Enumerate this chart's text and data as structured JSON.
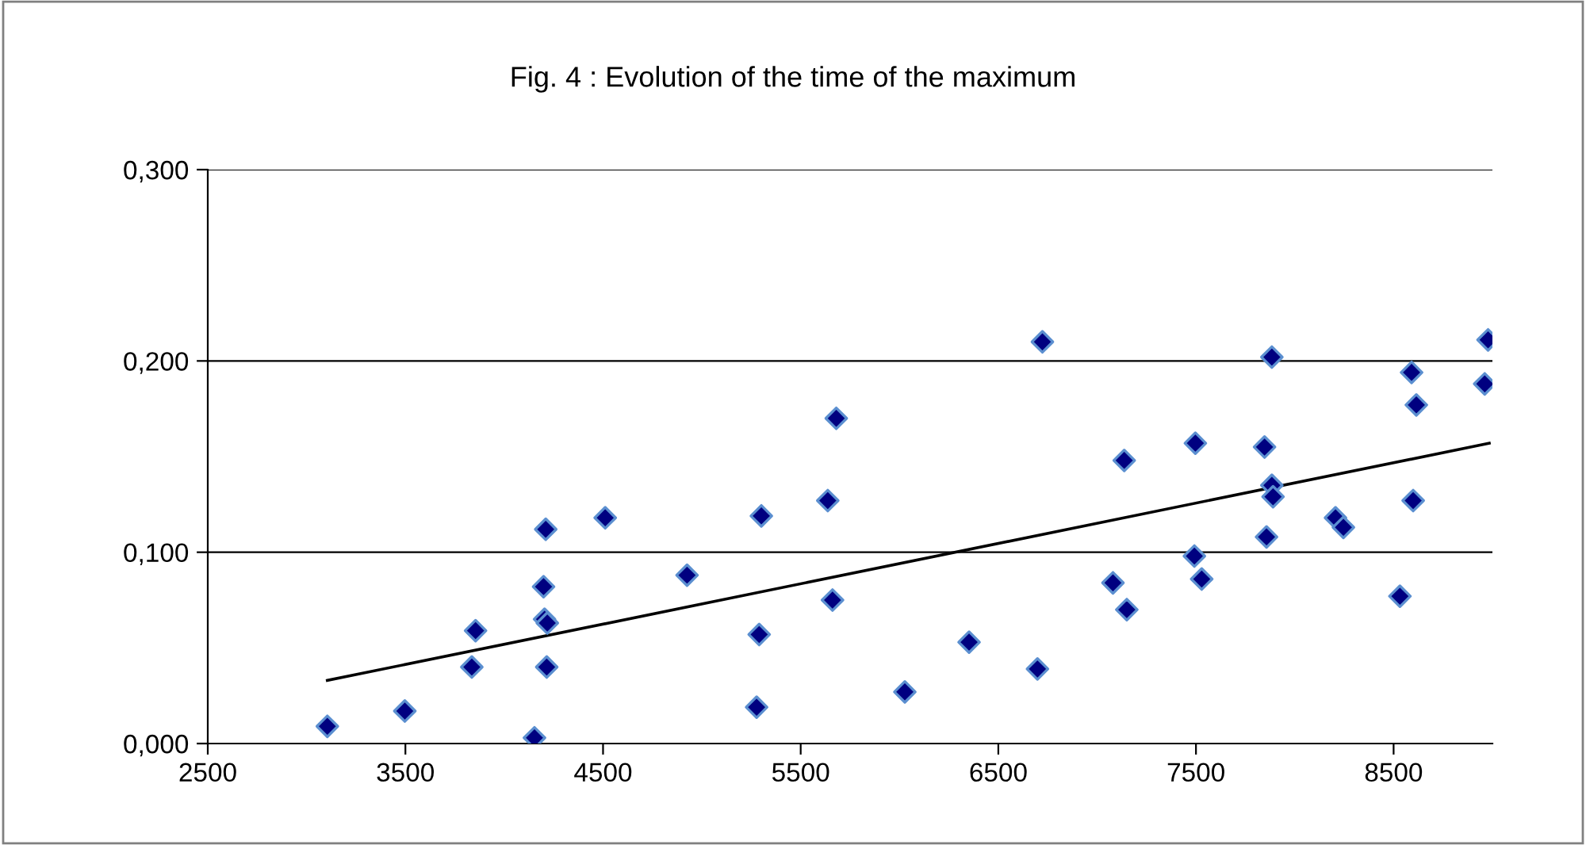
{
  "chart_data": {
    "type": "scatter",
    "title": "Fig. 4 : Evolution of the time of the maximum",
    "xlim": [
      2500,
      9000
    ],
    "xticks": [
      2500,
      3500,
      4500,
      5500,
      6500,
      7500,
      8500
    ],
    "ylim": [
      0,
      0.3
    ],
    "yticks": [
      {
        "value": 0,
        "label": "0,000"
      },
      {
        "value": 0.1,
        "label": "0,100"
      },
      {
        "value": 0.2,
        "label": "0,200"
      },
      {
        "value": 0.3,
        "label": "0,300"
      }
    ],
    "grid": "y",
    "legend": false,
    "series": [
      {
        "marker": "diamond",
        "color": "#000080",
        "x": [
          3105,
          3497,
          3836,
          3855,
          4153,
          4210,
          4199,
          4204,
          4218,
          4215,
          4511,
          4925,
          5301,
          5290,
          5277,
          5637,
          5680,
          5661,
          6027,
          6352,
          6698,
          6723,
          7080,
          7137,
          7150,
          7497,
          7492,
          7529,
          7847,
          7884,
          7884,
          7890,
          7857,
          8206,
          8246,
          8532,
          8591,
          8615,
          8599,
          8978,
          8961
        ],
        "values": [
          0.009,
          0.017,
          0.04,
          0.059,
          0.003,
          0.112,
          0.082,
          0.065,
          0.063,
          0.04,
          0.118,
          0.088,
          0.119,
          0.057,
          0.019,
          0.127,
          0.17,
          0.075,
          0.027,
          0.053,
          0.039,
          0.21,
          0.084,
          0.148,
          0.07,
          0.157,
          0.098,
          0.086,
          0.155,
          0.202,
          0.135,
          0.129,
          0.108,
          0.118,
          0.113,
          0.077,
          0.194,
          0.177,
          0.127,
          0.211,
          0.188
        ]
      },
      {
        "type": "line",
        "color": "#000000",
        "x": [
          3105,
          8984
        ],
        "values": [
          0.033,
          0.157
        ],
        "marker": "none"
      }
    ]
  }
}
